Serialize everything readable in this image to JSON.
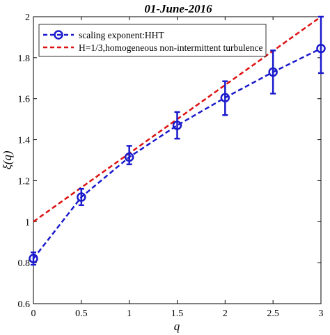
{
  "chart_data": {
    "type": "line",
    "title": "01-June-2016",
    "xlabel": "q",
    "ylabel": "ξ(q)",
    "xlim": [
      0,
      3
    ],
    "ylim": [
      0.6,
      2
    ],
    "xticks": [
      0,
      0.5,
      1,
      1.5,
      2,
      2.5,
      3
    ],
    "xtick_labels": [
      "0",
      "0.5",
      "1",
      "1.5",
      "2",
      "2.5",
      "3"
    ],
    "yticks": [
      0.6,
      0.8,
      1,
      1.2,
      1.4,
      1.6,
      1.8,
      2
    ],
    "ytick_labels": [
      "0.6",
      "0.8",
      "1",
      "1.2",
      "1.4",
      "1.6",
      "1.8",
      "2"
    ],
    "grid": false,
    "legend_position": "top-left",
    "series": [
      {
        "name": "scaling exponent:HHT",
        "color": "#1a1acc",
        "style": "dashed-with-circle-markers-and-errorbars",
        "x": [
          0,
          0.5,
          1,
          1.5,
          2,
          2.5,
          3
        ],
        "y": [
          0.82,
          1.12,
          1.315,
          1.47,
          1.605,
          1.73,
          1.845
        ],
        "err_low": [
          0.03,
          0.04,
          0.035,
          0.065,
          0.085,
          0.105,
          0.12
        ],
        "err_high": [
          0.03,
          0.04,
          0.055,
          0.065,
          0.08,
          0.105,
          0.155
        ]
      },
      {
        "name": "H=1/3,homogeneous non-intermittent turbulence",
        "color": "#dd1111",
        "style": "dashed",
        "x": [
          0,
          3
        ],
        "y": [
          1,
          2
        ]
      }
    ]
  }
}
